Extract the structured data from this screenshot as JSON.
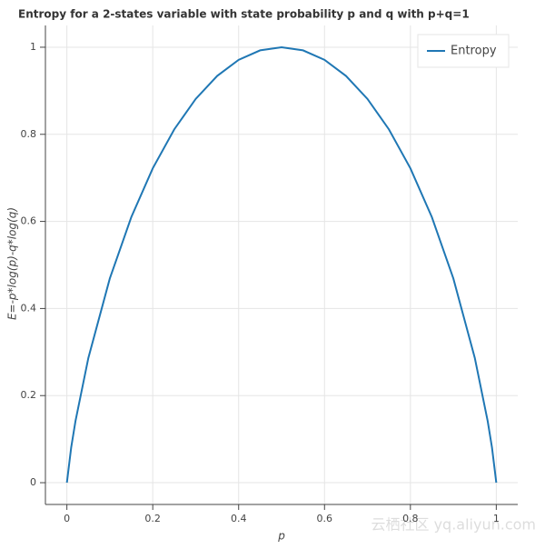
{
  "chart_data": {
    "type": "line",
    "title": "Entropy for a 2-states variable with state probability p and q with p+q=1",
    "x_label": "p",
    "y_label": "E=-p*log(p)-q*log(q)",
    "x": [
      0,
      0.01,
      0.02,
      0.05,
      0.1,
      0.15,
      0.2,
      0.25,
      0.3,
      0.35,
      0.4,
      0.45,
      0.5,
      0.55,
      0.6,
      0.65,
      0.7,
      0.75,
      0.8,
      0.85,
      0.9,
      0.95,
      0.98,
      0.99,
      1
    ],
    "series": [
      {
        "name": "Entropy",
        "color": "#1f77b4",
        "values": [
          0,
          0.0808,
          0.1414,
          0.2864,
          0.469,
          0.6098,
          0.7219,
          0.8113,
          0.8813,
          0.9341,
          0.971,
          0.9928,
          1,
          0.9928,
          0.971,
          0.9341,
          0.8813,
          0.8113,
          0.7219,
          0.6098,
          0.469,
          0.2864,
          0.1414,
          0.0808,
          0
        ]
      }
    ],
    "xlim": [
      -0.05,
      1.05
    ],
    "ylim": [
      -0.05,
      1.05
    ],
    "xticks": [
      0,
      0.2,
      0.4,
      0.6,
      0.8,
      1
    ],
    "yticks": [
      0,
      0.2,
      0.4,
      0.6,
      0.8,
      1
    ],
    "grid": true,
    "legend": "top-right",
    "watermark": "云栖社区 yq.aliyun.com"
  }
}
